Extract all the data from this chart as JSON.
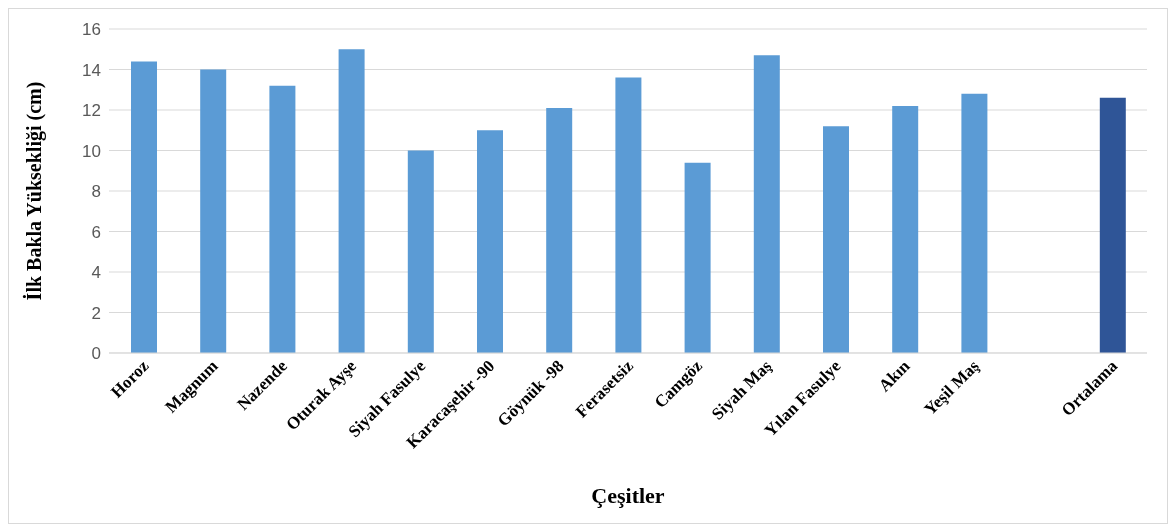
{
  "chart_data": {
    "type": "bar",
    "xlabel": "Çeşitler",
    "ylabel": "İlk Bakla Yüksekliği (cm)",
    "categories": [
      "Horoz",
      "Magnum",
      "Nazende",
      "Oturak Ayşe",
      "Siyah  Fasulye",
      "Karacaşehir -90",
      "Göynük -98",
      "Ferasetsiz",
      "Camgöz",
      "Siyah Maş",
      "Yılan Fasulye",
      "Akın",
      "Yeşil Maş",
      null,
      "Ortalama"
    ],
    "values": [
      14.4,
      14.0,
      13.2,
      15.0,
      10.0,
      11.0,
      12.1,
      13.6,
      9.4,
      14.7,
      11.2,
      12.2,
      12.8,
      null,
      12.6
    ],
    "colors": [
      "#5b9bd5",
      "#5b9bd5",
      "#5b9bd5",
      "#5b9bd5",
      "#5b9bd5",
      "#5b9bd5",
      "#5b9bd5",
      "#5b9bd5",
      "#5b9bd5",
      "#5b9bd5",
      "#5b9bd5",
      "#5b9bd5",
      "#5b9bd5",
      "#5b9bd5",
      "#2f5597"
    ],
    "ylim": [
      0,
      16
    ],
    "yticks": [
      0,
      2,
      4,
      6,
      8,
      10,
      12,
      14,
      16
    ],
    "grid": "y"
  }
}
